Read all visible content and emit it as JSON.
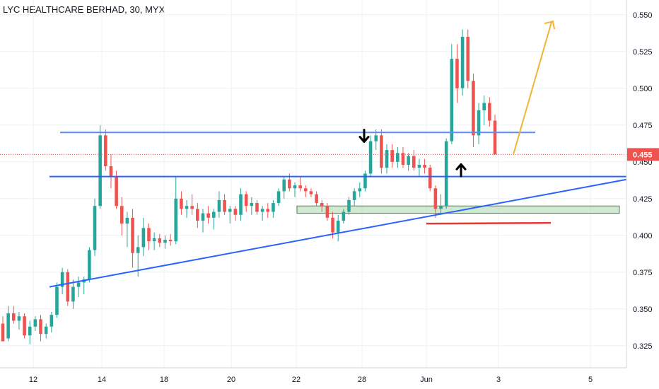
{
  "header": {
    "title": "LYC HEALTHCARE BERHAD, 30, MYX"
  },
  "chart_data": {
    "type": "candlestick",
    "title": "LYC HEALTHCARE BERHAD, 30, MYX",
    "symbol": "LYC HEALTHCARE BERHAD",
    "interval": "30",
    "exchange": "MYX",
    "ylim": [
      0.31,
      0.56
    ],
    "y_ticks": [
      "0.550",
      "0.525",
      "0.500",
      "0.475",
      "0.450",
      "0.425",
      "0.400",
      "0.375",
      "0.350",
      "0.325"
    ],
    "x_ticks": [
      "12",
      "14",
      "18",
      "20",
      "22",
      "28",
      "Jun",
      "3",
      "5"
    ],
    "grid": true,
    "last_price": "0.455",
    "colors": {
      "up": "#26a69a",
      "down": "#ef5350",
      "trendline": "#2962ff",
      "zone": "#c8e6c9",
      "support_red": "#e53935",
      "projection": "#f0b433"
    },
    "annotations": [
      {
        "type": "horizontal-line",
        "price": 0.47,
        "color": "#5b8def"
      },
      {
        "type": "horizontal-line",
        "price": 0.44,
        "color": "#2962ff"
      },
      {
        "type": "ascending-trendline",
        "from_price": 0.365,
        "to_price": 0.438,
        "color": "#2962ff"
      },
      {
        "type": "support-zone",
        "low": 0.415,
        "high": 0.42,
        "color": "#c8e6c9"
      },
      {
        "type": "support-line",
        "price": 0.408,
        "color": "#e53935"
      },
      {
        "type": "arrow-down",
        "price": 0.466
      },
      {
        "type": "arrow-up",
        "price": 0.444
      },
      {
        "type": "projection-arrow",
        "from_price": 0.455,
        "to_price": 0.545,
        "color": "#f0b433"
      }
    ],
    "candles": [
      [
        0.34,
        0.345,
        0.33,
        0.328
      ],
      [
        0.33,
        0.352,
        0.328,
        0.347
      ],
      [
        0.347,
        0.352,
        0.34,
        0.342
      ],
      [
        0.342,
        0.348,
        0.336,
        0.345
      ],
      [
        0.345,
        0.347,
        0.33,
        0.332
      ],
      [
        0.332,
        0.342,
        0.326,
        0.338
      ],
      [
        0.338,
        0.345,
        0.335,
        0.343
      ],
      [
        0.343,
        0.346,
        0.328,
        0.333
      ],
      [
        0.333,
        0.34,
        0.33,
        0.338
      ],
      [
        0.338,
        0.348,
        0.334,
        0.346
      ],
      [
        0.346,
        0.368,
        0.344,
        0.365
      ],
      [
        0.365,
        0.378,
        0.36,
        0.375
      ],
      [
        0.375,
        0.377,
        0.352,
        0.355
      ],
      [
        0.355,
        0.37,
        0.35,
        0.365
      ],
      [
        0.365,
        0.372,
        0.358,
        0.368
      ],
      [
        0.368,
        0.372,
        0.36,
        0.37
      ],
      [
        0.37,
        0.392,
        0.368,
        0.39
      ],
      [
        0.39,
        0.425,
        0.386,
        0.42
      ],
      [
        0.42,
        0.475,
        0.418,
        0.468
      ],
      [
        0.468,
        0.472,
        0.444,
        0.447
      ],
      [
        0.447,
        0.455,
        0.432,
        0.44
      ],
      [
        0.44,
        0.444,
        0.418,
        0.42
      ],
      [
        0.42,
        0.426,
        0.4,
        0.408
      ],
      [
        0.408,
        0.416,
        0.392,
        0.412
      ],
      [
        0.412,
        0.418,
        0.378,
        0.388
      ],
      [
        0.388,
        0.4,
        0.372,
        0.392
      ],
      [
        0.392,
        0.412,
        0.386,
        0.405
      ],
      [
        0.405,
        0.408,
        0.39,
        0.396
      ],
      [
        0.396,
        0.402,
        0.39,
        0.398
      ],
      [
        0.398,
        0.401,
        0.392,
        0.395
      ],
      [
        0.395,
        0.4,
        0.391,
        0.397
      ],
      [
        0.397,
        0.401,
        0.393,
        0.396
      ],
      [
        0.396,
        0.44,
        0.394,
        0.425
      ],
      [
        0.425,
        0.43,
        0.414,
        0.418
      ],
      [
        0.418,
        0.424,
        0.412,
        0.42
      ],
      [
        0.42,
        0.428,
        0.414,
        0.418
      ],
      [
        0.418,
        0.422,
        0.405,
        0.41
      ],
      [
        0.41,
        0.418,
        0.402,
        0.415
      ],
      [
        0.415,
        0.42,
        0.408,
        0.412
      ],
      [
        0.412,
        0.418,
        0.404,
        0.416
      ],
      [
        0.416,
        0.43,
        0.412,
        0.424
      ],
      [
        0.424,
        0.428,
        0.414,
        0.416
      ],
      [
        0.416,
        0.42,
        0.408,
        0.418
      ],
      [
        0.418,
        0.42,
        0.41,
        0.414
      ],
      [
        0.414,
        0.432,
        0.41,
        0.428
      ],
      [
        0.428,
        0.43,
        0.416,
        0.42
      ],
      [
        0.42,
        0.426,
        0.414,
        0.422
      ],
      [
        0.422,
        0.424,
        0.414,
        0.416
      ],
      [
        0.416,
        0.42,
        0.41,
        0.418
      ],
      [
        0.418,
        0.422,
        0.412,
        0.416
      ],
      [
        0.416,
        0.424,
        0.412,
        0.422
      ],
      [
        0.422,
        0.432,
        0.42,
        0.43
      ],
      [
        0.43,
        0.44,
        0.425,
        0.438
      ],
      [
        0.438,
        0.442,
        0.43,
        0.432
      ],
      [
        0.432,
        0.436,
        0.426,
        0.434
      ],
      [
        0.434,
        0.44,
        0.43,
        0.432
      ],
      [
        0.432,
        0.434,
        0.426,
        0.43
      ],
      [
        0.43,
        0.432,
        0.426,
        0.428
      ],
      [
        0.428,
        0.43,
        0.42,
        0.422
      ],
      [
        0.422,
        0.424,
        0.416,
        0.42
      ],
      [
        0.42,
        0.422,
        0.41,
        0.412
      ],
      [
        0.412,
        0.416,
        0.398,
        0.402
      ],
      [
        0.402,
        0.414,
        0.396,
        0.41
      ],
      [
        0.41,
        0.418,
        0.408,
        0.416
      ],
      [
        0.416,
        0.426,
        0.414,
        0.424
      ],
      [
        0.424,
        0.432,
        0.42,
        0.43
      ],
      [
        0.43,
        0.436,
        0.426,
        0.432
      ],
      [
        0.432,
        0.444,
        0.43,
        0.442
      ],
      [
        0.442,
        0.468,
        0.44,
        0.464
      ],
      [
        0.464,
        0.472,
        0.458,
        0.468
      ],
      [
        0.468,
        0.472,
        0.442,
        0.446
      ],
      [
        0.446,
        0.462,
        0.442,
        0.458
      ],
      [
        0.458,
        0.462,
        0.446,
        0.45
      ],
      [
        0.45,
        0.46,
        0.446,
        0.456
      ],
      [
        0.456,
        0.46,
        0.446,
        0.448
      ],
      [
        0.448,
        0.456,
        0.444,
        0.454
      ],
      [
        0.454,
        0.458,
        0.444,
        0.446
      ],
      [
        0.446,
        0.452,
        0.44,
        0.448
      ],
      [
        0.448,
        0.452,
        0.442,
        0.446
      ],
      [
        0.446,
        0.448,
        0.43,
        0.432
      ],
      [
        0.432,
        0.434,
        0.412,
        0.418
      ],
      [
        0.418,
        0.428,
        0.414,
        0.42
      ],
      [
        0.42,
        0.466,
        0.418,
        0.464
      ],
      [
        0.464,
        0.53,
        0.462,
        0.52
      ],
      [
        0.52,
        0.53,
        0.49,
        0.5
      ],
      [
        0.5,
        0.54,
        0.495,
        0.535
      ],
      [
        0.535,
        0.54,
        0.5,
        0.505
      ],
      [
        0.505,
        0.51,
        0.46,
        0.468
      ],
      [
        0.468,
        0.49,
        0.462,
        0.485
      ],
      [
        0.485,
        0.495,
        0.475,
        0.49
      ],
      [
        0.49,
        0.494,
        0.474,
        0.478
      ],
      [
        0.478,
        0.482,
        0.455,
        0.455
      ]
    ]
  }
}
